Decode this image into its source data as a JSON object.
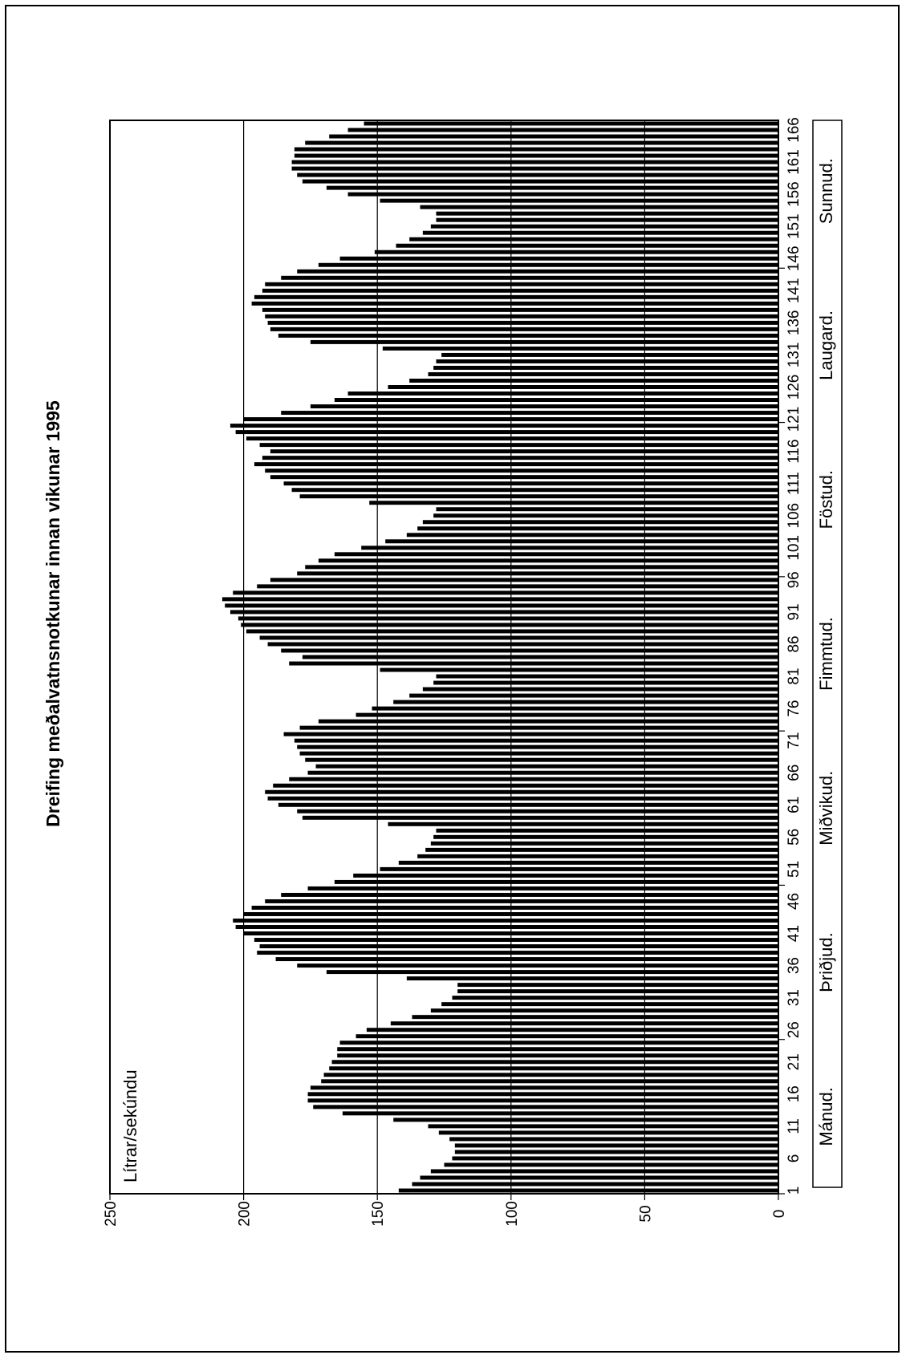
{
  "chart_data": {
    "type": "bar",
    "orientation": "rotated",
    "title": "Dreifing meðalvatnsnotkunar innan vikunar 1995",
    "ylabel": "Lítrar/sekúndu",
    "ylim": [
      0,
      250
    ],
    "yticks": [
      "0",
      "50",
      "100",
      "150",
      "200",
      "250"
    ],
    "grid": true,
    "categories_start": 1,
    "category_ticks": [
      "1",
      "6",
      "11",
      "16",
      "21",
      "26",
      "31",
      "36",
      "41",
      "46",
      "51",
      "56",
      "61",
      "66",
      "71",
      "76",
      "81",
      "86",
      "91",
      "96",
      "101",
      "106",
      "111",
      "116",
      "121",
      "126",
      "131",
      "136",
      "141",
      "146",
      "151",
      "156",
      "161",
      "166"
    ],
    "day_labels": [
      "Mánud.",
      "Þriðjud.",
      "Miðvikud.",
      "Fimmtud.",
      "Föstud.",
      "Laugard.",
      "Sunnud."
    ],
    "values": [
      142,
      137,
      134,
      130,
      125,
      122,
      121,
      121,
      123,
      127,
      131,
      144,
      163,
      174,
      176,
      176,
      175,
      171,
      170,
      168,
      167,
      165,
      165,
      164,
      158,
      154,
      145,
      137,
      130,
      126,
      122,
      120,
      120,
      139,
      169,
      180,
      188,
      195,
      194,
      196,
      200,
      203,
      204,
      200,
      197,
      192,
      186,
      176,
      166,
      159,
      149,
      142,
      135,
      132,
      130,
      129,
      128,
      146,
      178,
      180,
      187,
      191,
      192,
      189,
      183,
      176,
      173,
      177,
      179,
      180,
      181,
      185,
      179,
      172,
      158,
      152,
      144,
      138,
      133,
      129,
      128,
      149,
      183,
      178,
      186,
      191,
      194,
      199,
      201,
      202,
      205,
      207,
      208,
      204,
      195,
      190,
      180,
      177,
      172,
      166,
      156,
      147,
      139,
      135,
      133,
      129,
      128,
      153,
      179,
      182,
      185,
      190,
      192,
      196,
      193,
      190,
      194,
      199,
      203,
      205,
      200,
      186,
      175,
      166,
      161,
      146,
      138,
      131,
      129,
      128,
      126,
      148,
      175,
      187,
      190,
      191,
      192,
      193,
      197,
      196,
      193,
      192,
      186,
      180,
      172,
      164,
      151,
      143,
      138,
      133,
      130,
      128,
      128,
      134,
      149,
      161,
      169,
      178,
      180,
      182,
      182,
      181,
      181,
      177,
      168,
      161,
      155
    ]
  }
}
